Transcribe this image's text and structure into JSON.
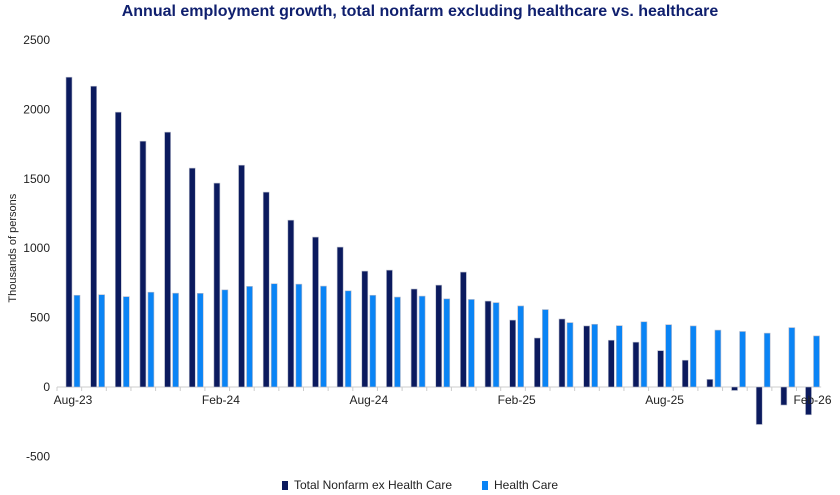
{
  "chart_data": {
    "type": "bar",
    "title": "Annual employment growth, total nonfarm excluding healthcare vs. healthcare",
    "ylabel": "Thousands of persons",
    "xlabel": "",
    "ylim": [
      -500,
      2500
    ],
    "yticks": [
      -500,
      0,
      500,
      1000,
      1500,
      2000,
      2500
    ],
    "categories": [
      "Aug-23",
      "Sep-23",
      "Oct-23",
      "Nov-23",
      "Dec-23",
      "Jan-24",
      "Feb-24",
      "Mar-24",
      "Apr-24",
      "May-24",
      "Jun-24",
      "Jul-24",
      "Aug-24",
      "Sep-24",
      "Oct-24",
      "Nov-24",
      "Dec-24",
      "Jan-25",
      "Feb-25",
      "Mar-25",
      "Apr-25",
      "May-25",
      "Jun-25",
      "Jul-25",
      "Aug-25",
      "Sep-25",
      "Oct-25",
      "Nov-25",
      "Dec-25",
      "Jan-26",
      "Feb-26"
    ],
    "xtick_labels": [
      "Aug-23",
      "Feb-24",
      "Aug-24",
      "Feb-25",
      "Aug-25",
      "Feb-26"
    ],
    "grid": false,
    "legend": "bottom",
    "series": [
      {
        "name": "Total Nonfarm ex Health Care",
        "color": "#0b1a5e",
        "values": [
          2232,
          2167,
          1980,
          1771,
          1836,
          1577,
          1469,
          1598,
          1404,
          1202,
          1080,
          1008,
          835,
          842,
          706,
          734,
          828,
          619,
          482,
          353,
          490,
          440,
          337,
          323,
          262,
          193,
          55,
          -25,
          -270,
          -130,
          -200
        ]
      },
      {
        "name": "Health Care",
        "color": "#0a84f5",
        "values": [
          661,
          665,
          651,
          683,
          676,
          675,
          700,
          725,
          744,
          741,
          727,
          693,
          661,
          648,
          655,
          635,
          631,
          608,
          584,
          558,
          464,
          452,
          442,
          470,
          449,
          440,
          410,
          400,
          388,
          428,
          368
        ]
      }
    ]
  }
}
